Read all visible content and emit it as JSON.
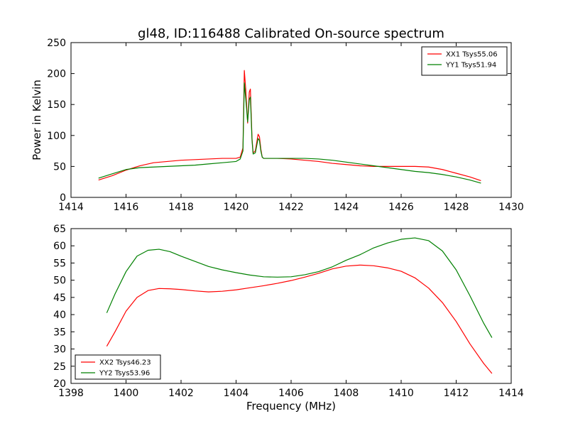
{
  "figure": {
    "title": "gl48, ID:116488 Calibrated On-source spectrum"
  },
  "chart_data": [
    {
      "type": "line",
      "title": "gl48, ID:116488 Calibrated On-source spectrum",
      "xlabel": "",
      "ylabel": "Power in Kelvin",
      "xlim": [
        1414,
        1430
      ],
      "ylim": [
        0,
        250
      ],
      "x_ticks": [
        "1414",
        "1416",
        "1418",
        "1420",
        "1422",
        "1424",
        "1426",
        "1428",
        "1430"
      ],
      "y_ticks": [
        "0",
        "50",
        "100",
        "150",
        "200",
        "250"
      ],
      "legend_position": "top-right",
      "grid": false,
      "series": [
        {
          "name": "XX1 Tsys55.06",
          "color": "#ff0000",
          "x": [
            1415.0,
            1415.5,
            1416.0,
            1416.5,
            1417.0,
            1417.5,
            1418.0,
            1418.5,
            1419.0,
            1419.5,
            1420.0,
            1420.15,
            1420.25,
            1420.3,
            1420.35,
            1420.42,
            1420.48,
            1420.52,
            1420.58,
            1420.62,
            1420.7,
            1420.8,
            1420.85,
            1420.9,
            1420.95,
            1421.0,
            1421.5,
            1422.0,
            1422.5,
            1423.0,
            1423.5,
            1424.0,
            1424.5,
            1425.0,
            1425.5,
            1426.0,
            1426.5,
            1427.0,
            1427.5,
            1428.0,
            1428.5,
            1428.9
          ],
          "values": [
            28,
            35,
            44,
            51,
            56,
            58,
            60,
            61,
            62,
            63,
            63,
            65,
            80,
            205,
            175,
            120,
            170,
            175,
            95,
            72,
            75,
            102,
            98,
            78,
            65,
            63,
            63,
            62,
            60,
            58,
            55,
            53,
            51,
            50,
            50,
            50,
            50,
            49,
            45,
            39,
            33,
            27
          ]
        },
        {
          "name": "YY1 Tsys51.94",
          "color": "#008000",
          "x": [
            1415.0,
            1415.5,
            1416.0,
            1416.5,
            1417.0,
            1417.5,
            1418.0,
            1418.5,
            1419.0,
            1419.5,
            1420.0,
            1420.15,
            1420.25,
            1420.3,
            1420.35,
            1420.42,
            1420.48,
            1420.52,
            1420.58,
            1420.62,
            1420.7,
            1420.8,
            1420.85,
            1420.9,
            1420.95,
            1421.0,
            1421.5,
            1422.0,
            1422.5,
            1423.0,
            1423.5,
            1424.0,
            1424.5,
            1425.0,
            1425.5,
            1426.0,
            1426.5,
            1427.0,
            1427.5,
            1428.0,
            1428.5,
            1428.9
          ],
          "values": [
            31,
            38,
            45,
            48,
            49,
            50,
            51,
            52,
            54,
            56,
            58,
            62,
            75,
            185,
            160,
            122,
            158,
            162,
            92,
            70,
            72,
            95,
            92,
            75,
            65,
            63,
            63,
            63,
            63,
            62,
            60,
            57,
            54,
            51,
            48,
            45,
            42,
            40,
            37,
            33,
            28,
            23
          ]
        }
      ]
    },
    {
      "type": "line",
      "title": "",
      "xlabel": "Frequency (MHz)",
      "ylabel": "",
      "xlim": [
        1398,
        1414
      ],
      "ylim": [
        20,
        65
      ],
      "x_ticks": [
        "1398",
        "1400",
        "1402",
        "1404",
        "1406",
        "1408",
        "1410",
        "1412",
        "1414"
      ],
      "y_ticks": [
        "20",
        "25",
        "30",
        "35",
        "40",
        "45",
        "50",
        "55",
        "60",
        "65"
      ],
      "legend_position": "bottom-left",
      "grid": false,
      "series": [
        {
          "name": "XX2 Tsys46.23",
          "color": "#ff0000",
          "x": [
            1399.3,
            1399.6,
            1400.0,
            1400.4,
            1400.8,
            1401.2,
            1401.6,
            1402.0,
            1402.5,
            1403.0,
            1403.5,
            1404.0,
            1404.5,
            1405.0,
            1405.5,
            1406.0,
            1406.5,
            1407.0,
            1407.5,
            1408.0,
            1408.5,
            1409.0,
            1409.5,
            1410.0,
            1410.5,
            1411.0,
            1411.5,
            1412.0,
            1412.5,
            1413.0,
            1413.3
          ],
          "values": [
            30.8,
            35.0,
            41.0,
            45.0,
            47.0,
            47.6,
            47.5,
            47.3,
            46.9,
            46.6,
            46.8,
            47.2,
            47.8,
            48.4,
            49.1,
            49.9,
            50.9,
            52.0,
            53.3,
            54.1,
            54.4,
            54.2,
            53.6,
            52.6,
            50.7,
            47.7,
            43.5,
            38.0,
            31.5,
            25.8,
            22.9
          ]
        },
        {
          "name": "YY2 Tsys53.96",
          "color": "#008000",
          "x": [
            1399.3,
            1399.6,
            1400.0,
            1400.4,
            1400.8,
            1401.2,
            1401.6,
            1402.0,
            1402.5,
            1403.0,
            1403.5,
            1404.0,
            1404.5,
            1405.0,
            1405.5,
            1406.0,
            1406.5,
            1407.0,
            1407.5,
            1408.0,
            1408.5,
            1409.0,
            1409.5,
            1410.0,
            1410.5,
            1411.0,
            1411.5,
            1412.0,
            1412.5,
            1413.0,
            1413.3
          ],
          "values": [
            40.5,
            46.0,
            52.5,
            57.0,
            58.7,
            59.0,
            58.3,
            57.0,
            55.5,
            54.0,
            53.0,
            52.2,
            51.5,
            51.0,
            50.9,
            51.0,
            51.6,
            52.5,
            53.9,
            55.8,
            57.4,
            59.4,
            60.8,
            61.9,
            62.3,
            61.5,
            58.5,
            53.0,
            45.5,
            37.5,
            33.3
          ]
        }
      ]
    }
  ]
}
